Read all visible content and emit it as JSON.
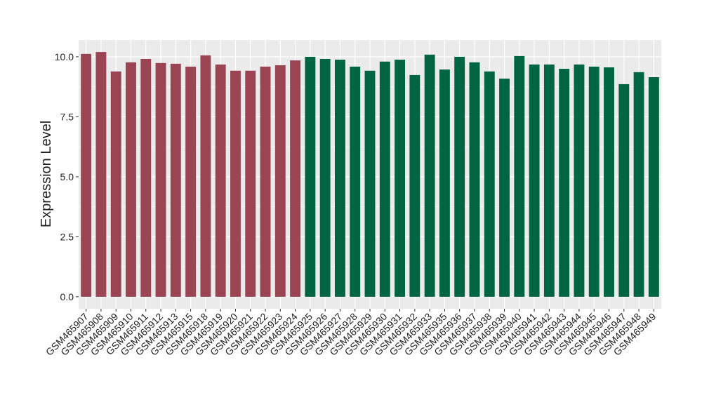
{
  "chart_data": {
    "type": "bar",
    "y_label": "Expression Level",
    "categories": [
      "GSM465907",
      "GSM465908",
      "GSM465909",
      "GSM465910",
      "GSM465911",
      "GSM465912",
      "GSM465913",
      "GSM465915",
      "GSM465918",
      "GSM465919",
      "GSM465920",
      "GSM465921",
      "GSM465922",
      "GSM465923",
      "GSM465924",
      "GSM465925",
      "GSM465926",
      "GSM465927",
      "GSM465928",
      "GSM465929",
      "GSM465930",
      "GSM465931",
      "GSM465932",
      "GSM465933",
      "GSM465935",
      "GSM465936",
      "GSM465937",
      "GSM465938",
      "GSM465939",
      "GSM465940",
      "GSM465941",
      "GSM465942",
      "GSM465943",
      "GSM465944",
      "GSM465945",
      "GSM465946",
      "GSM465947",
      "GSM465948",
      "GSM465949"
    ],
    "values": [
      10.12,
      10.2,
      9.39,
      9.77,
      9.91,
      9.74,
      9.71,
      9.59,
      10.06,
      9.68,
      9.42,
      9.42,
      9.59,
      9.65,
      9.85,
      10.0,
      9.91,
      9.88,
      9.59,
      9.42,
      9.8,
      9.88,
      9.24,
      10.09,
      9.47,
      10.0,
      9.77,
      9.39,
      9.09,
      10.03,
      9.68,
      9.68,
      9.5,
      9.68,
      9.59,
      9.56,
      8.86,
      9.36,
      9.15
    ],
    "colors": [
      "#9b4453",
      "#9b4453",
      "#9b4453",
      "#9b4453",
      "#9b4453",
      "#9b4453",
      "#9b4453",
      "#9b4453",
      "#9b4453",
      "#9b4453",
      "#9b4453",
      "#9b4453",
      "#9b4453",
      "#9b4453",
      "#9b4453",
      "#006641",
      "#006641",
      "#006641",
      "#006641",
      "#006641",
      "#006641",
      "#006641",
      "#006641",
      "#006641",
      "#006641",
      "#006641",
      "#006641",
      "#006641",
      "#006641",
      "#006641",
      "#006641",
      "#006641",
      "#006641",
      "#006641",
      "#006641",
      "#006641",
      "#006641",
      "#006641",
      "#006641"
    ],
    "ylim": [
      -0.5,
      10.7
    ],
    "yticks": [
      {
        "value": 0,
        "label": "0.0"
      },
      2.5,
      {
        "value": 5,
        "label": "5.0"
      },
      7.5,
      {
        "value": 10,
        "label": "10.0"
      }
    ],
    "grid": true
  }
}
